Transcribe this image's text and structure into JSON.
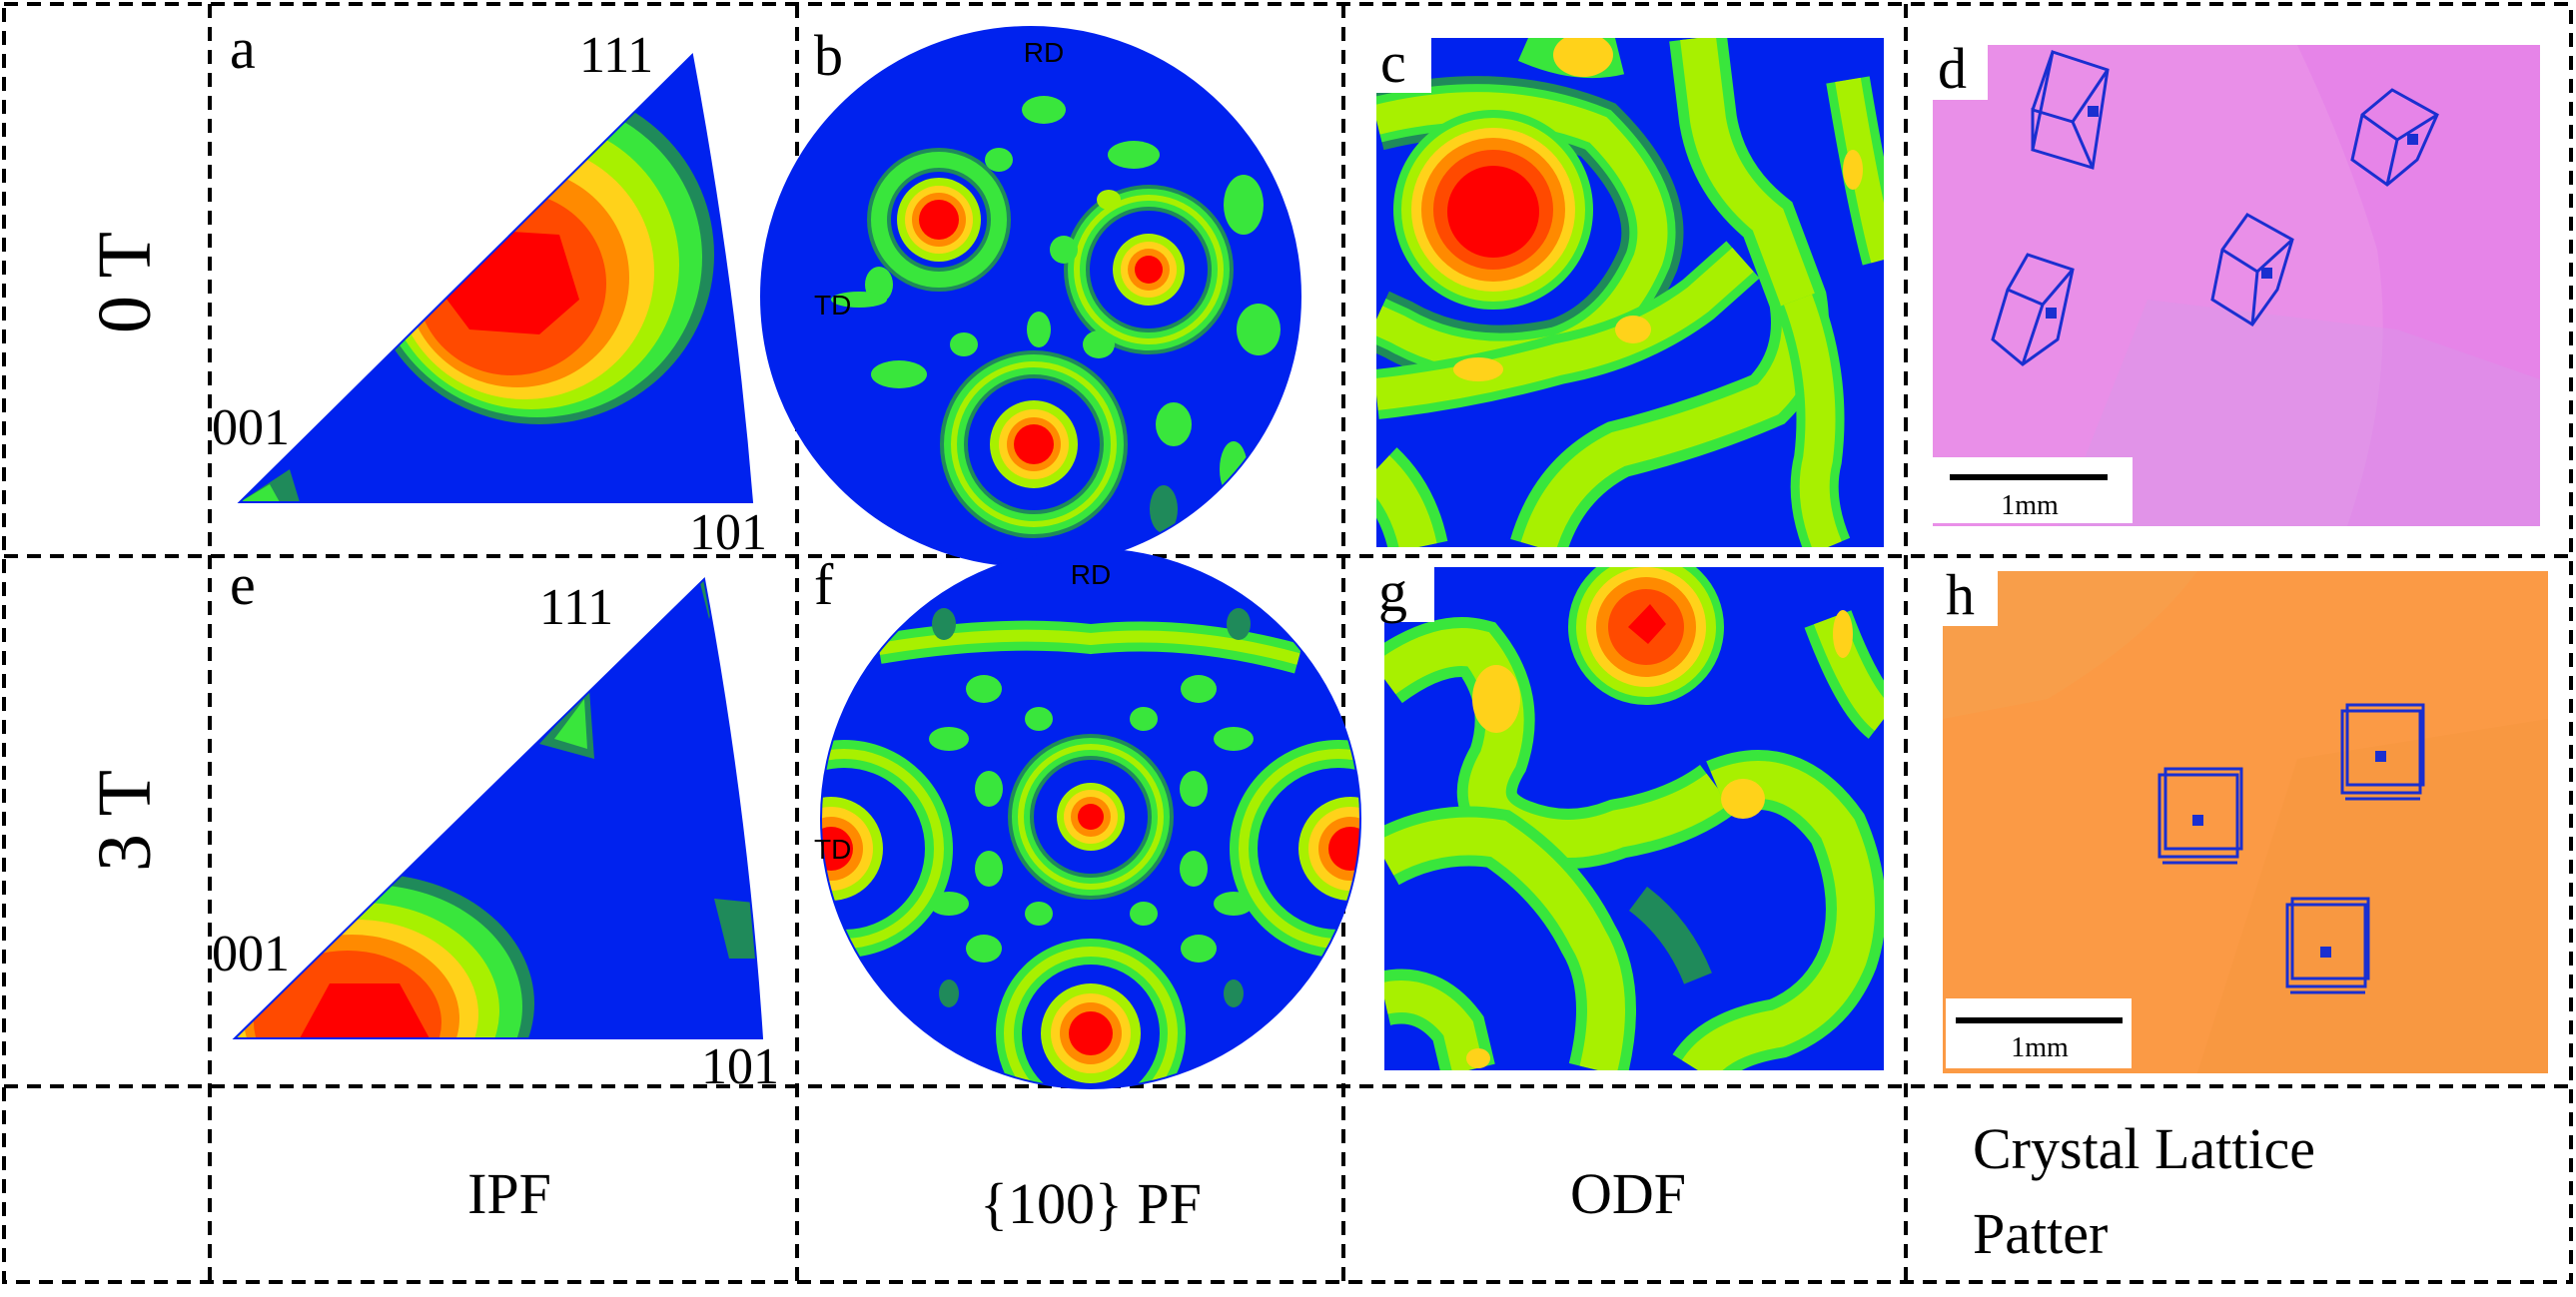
{
  "rows": [
    {
      "label": "0 T"
    },
    {
      "label": "3 T"
    }
  ],
  "columns": [
    {
      "label": "IPF"
    },
    {
      "label": "{100} PF"
    },
    {
      "label": "ODF"
    },
    {
      "label_line1": "Crystal Lattice",
      "label_line2": "Patter"
    }
  ],
  "panels": {
    "a": {
      "letter": "a",
      "corner_111": "111",
      "corner_001": "001",
      "corner_101": "101"
    },
    "b": {
      "letter": "b",
      "rd": "RD",
      "td": "TD"
    },
    "c": {
      "letter": "c"
    },
    "d": {
      "letter": "d",
      "scale": "1mm"
    },
    "e": {
      "letter": "e",
      "corner_111": "111",
      "corner_001": "001",
      "corner_101": "101"
    },
    "f": {
      "letter": "f",
      "rd": "RD",
      "td": "TD"
    },
    "g": {
      "letter": "g"
    },
    "h": {
      "letter": "h",
      "scale": "1mm"
    }
  },
  "colors": {
    "blue": "#0022ee",
    "dark_green": "#1f8a5a",
    "green": "#39e63c",
    "yellow_green": "#a8f000",
    "yellow": "#ffd21a",
    "orange": "#ff8a00",
    "red_orange": "#ff4a00",
    "red": "#ff0000",
    "pink_bg": "#e98fe8",
    "orange_bg": "#fb9a45"
  }
}
